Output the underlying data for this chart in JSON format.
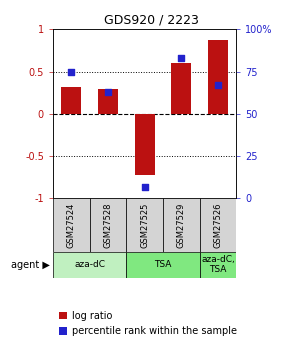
{
  "title": "GDS920 / 2223",
  "samples": [
    "GSM27524",
    "GSM27528",
    "GSM27525",
    "GSM27529",
    "GSM27526"
  ],
  "log_ratios": [
    0.32,
    0.29,
    -0.72,
    0.6,
    0.87
  ],
  "percentile_ranks": [
    75,
    63,
    7,
    83,
    67
  ],
  "bar_color": "#bb1111",
  "dot_color": "#2222cc",
  "ylim_left": [
    -1,
    1
  ],
  "ylim_right": [
    0,
    100
  ],
  "yticks_left": [
    -1,
    -0.5,
    0,
    0.5,
    1
  ],
  "ytick_labels_left": [
    "-1",
    "-0.5",
    "0",
    "0.5",
    "1"
  ],
  "yticks_right": [
    0,
    25,
    50,
    75,
    100
  ],
  "ytick_labels_right": [
    "0",
    "25",
    "50",
    "75",
    "100%"
  ],
  "hlines": [
    -0.5,
    0,
    0.5
  ],
  "hline_styles": [
    "dotted",
    "dashed",
    "dotted"
  ],
  "background_color": "#ffffff",
  "legend_log_ratio": "log ratio",
  "legend_percentile": "percentile rank within the sample",
  "agent_label": "agent",
  "agent_groups": [
    {
      "label": "aza-dC",
      "start": 0,
      "end": 1,
      "color": "#c0f0c0"
    },
    {
      "label": "TSA",
      "start": 2,
      "end": 3,
      "color": "#80e880"
    },
    {
      "label": "aza-dC,\nTSA",
      "start": 4,
      "end": 4,
      "color": "#80e880"
    }
  ],
  "sample_box_color": "#d4d4d4"
}
